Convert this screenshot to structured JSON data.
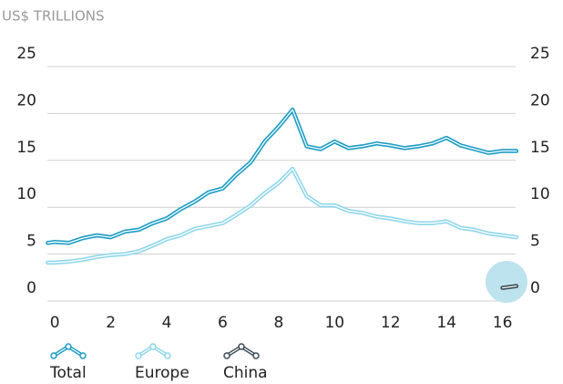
{
  "chart_data": {
    "type": "line",
    "title": "US$ TRILLIONS",
    "x": [
      -0.25,
      0,
      0.5,
      1,
      1.5,
      2,
      2.5,
      3,
      3.5,
      4,
      4.5,
      5,
      5.5,
      6,
      6.5,
      7,
      7.5,
      8,
      8.5,
      9,
      9.5,
      10,
      10.5,
      11,
      11.5,
      12,
      12.5,
      13,
      13.5,
      14,
      14.5,
      15,
      15.5,
      16,
      16.5
    ],
    "series": [
      {
        "name": "Total",
        "color": "#1a9cc4",
        "values": [
          6.2,
          6.3,
          6.2,
          6.7,
          7.0,
          6.8,
          7.4,
          7.6,
          8.3,
          8.8,
          9.8,
          10.6,
          11.6,
          12.0,
          13.5,
          14.8,
          17.0,
          18.6,
          20.4,
          16.5,
          16.2,
          17.0,
          16.3,
          16.5,
          16.8,
          16.6,
          16.3,
          16.5,
          16.8,
          17.4,
          16.6,
          16.2,
          15.8,
          16.0,
          16.0
        ]
      },
      {
        "name": "Europe",
        "color": "#8fd6ea",
        "values": [
          4.1,
          4.1,
          4.2,
          4.4,
          4.7,
          4.9,
          5.0,
          5.3,
          5.9,
          6.6,
          7.0,
          7.7,
          8.0,
          8.3,
          9.2,
          10.2,
          11.5,
          12.6,
          14.1,
          11.2,
          10.2,
          10.2,
          9.6,
          9.4,
          9.0,
          8.8,
          8.5,
          8.3,
          8.3,
          8.5,
          7.8,
          7.6,
          7.2,
          7.0,
          6.8
        ]
      },
      {
        "name": "China",
        "color": "#3a4a52",
        "values": [
          null,
          null,
          null,
          null,
          null,
          null,
          null,
          null,
          null,
          null,
          null,
          null,
          null,
          null,
          null,
          null,
          null,
          null,
          null,
          null,
          null,
          null,
          null,
          null,
          null,
          null,
          null,
          null,
          null,
          null,
          null,
          null,
          null,
          1.4,
          1.6
        ]
      }
    ],
    "xlim": [
      -0.25,
      16.6
    ],
    "xticks": [
      0,
      2,
      4,
      6,
      8,
      10,
      12,
      14,
      16
    ],
    "ylim": [
      0,
      25
    ],
    "yticks": [
      0,
      5,
      10,
      15,
      20,
      25
    ],
    "y2lim": [
      0,
      25
    ],
    "y2ticks": [
      0,
      5,
      10,
      15,
      20,
      25
    ],
    "grid": true
  }
}
